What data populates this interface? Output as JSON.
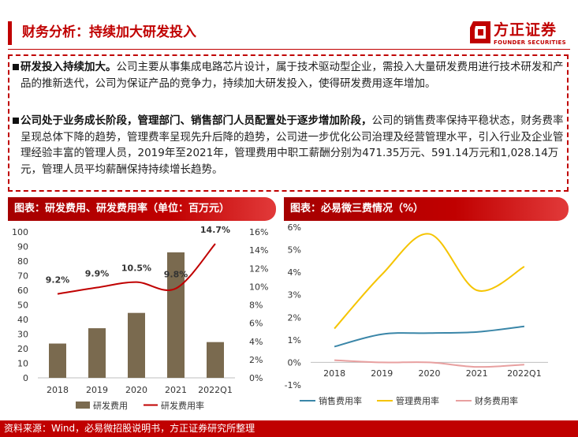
{
  "header": {
    "title": "财务分析：持续加大研发投入",
    "logo_cn": "方正证券",
    "logo_en": "FOUNDER SECURITIES",
    "accent": "#c00000"
  },
  "summary": {
    "p1_bold": "研发投入持续加大。",
    "p1_text": "公司主要从事集成电路芯片设计，属于技术驱动型企业，需投入大量研发费用进行技术研发和产品的推新迭代，公司为保证产品的竞争力，持续加大研发投入，使得研发费用逐年增加。",
    "p2_bold": "公司处于业务成长阶段，管理部门、销售部门人员配置处于逐步增加阶段，",
    "p2_text": "公司的销售费率保持平稳状态，财务费率呈现总体下降的趋势，管理费率呈现先升后降的趋势，公司进一步优化公司治理及经营管理水平，引入行业及企业管理经验丰富的管理人员，2019年至2021年，管理费用中职工薪酬分别为471.35万元、591.14万元和1,028.14万元，管理人员平均薪酬保持持续增长趋势。"
  },
  "panels": {
    "left_title": "图表：研发费用、研发费用率（单位：百万元）",
    "right_title": "图表：必易微三费情况（%）"
  },
  "footer": {
    "source": "资料来源：Wind，必易微招股说明书，方正证券研究所整理"
  },
  "chart_data": [
    {
      "type": "bar",
      "title": "研发费用、研发费用率（单位：百万元）",
      "categories": [
        "2018",
        "2019",
        "2020",
        "2021",
        "2022Q1"
      ],
      "series": [
        {
          "name": "研发费用",
          "kind": "bar",
          "axis": "left",
          "color": "#7a6a4f",
          "values": [
            23.5,
            34.0,
            44.5,
            86.0,
            24.5
          ]
        },
        {
          "name": "研发费用率",
          "kind": "line",
          "axis": "right",
          "color": "#c00000",
          "values": [
            9.2,
            9.9,
            10.5,
            9.8,
            14.7
          ],
          "labels": [
            "9.2%",
            "9.9%",
            "10.5%",
            "9.8%",
            "14.7%"
          ]
        }
      ],
      "ylim_left": [
        0,
        100
      ],
      "yticks_left": [
        "0",
        "10",
        "20",
        "30",
        "40",
        "50",
        "60",
        "70",
        "80",
        "90",
        "100"
      ],
      "ylim_right": [
        0,
        16
      ],
      "yticks_right": [
        "0%",
        "2%",
        "4%",
        "6%",
        "8%",
        "10%",
        "12%",
        "14%",
        "16%"
      ],
      "legend": [
        "研发费用",
        "研发费用率"
      ]
    },
    {
      "type": "line",
      "title": "必易微三费情况（%）",
      "categories": [
        "2018",
        "2019",
        "2020",
        "2021",
        "2022Q1"
      ],
      "series": [
        {
          "name": "销售费用率",
          "color": "#3a86a8",
          "values": [
            0.7,
            1.25,
            1.3,
            1.35,
            1.6
          ]
        },
        {
          "name": "管理费用率",
          "color": "#f5c400",
          "values": [
            1.5,
            3.9,
            5.7,
            3.2,
            4.25
          ]
        },
        {
          "name": "财务费用率",
          "color": "#e8a0a0",
          "values": [
            0.1,
            0.0,
            0.0,
            -0.2,
            -0.1
          ]
        }
      ],
      "ylim": [
        -1,
        6
      ],
      "yticks": [
        "-1%",
        "0%",
        "1%",
        "2%",
        "3%",
        "4%",
        "5%",
        "6%"
      ],
      "legend": [
        "销售费用率",
        "管理费用率",
        "财务费用率"
      ]
    }
  ]
}
